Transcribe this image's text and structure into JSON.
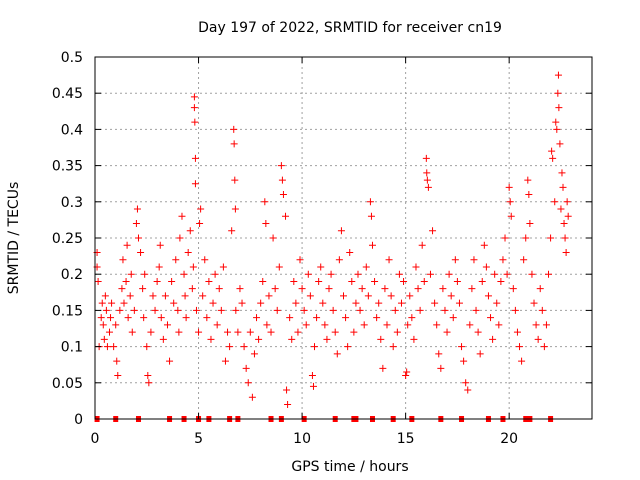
{
  "chart_data": {
    "type": "scatter",
    "title": "Day 197 of 2022, SRMTID for receiver cn19",
    "xlabel": "GPS time / hours",
    "ylabel": "SRMTID / TECUs",
    "xlim": [
      0,
      24
    ],
    "ylim": [
      0,
      0.5
    ],
    "xticks": [
      0,
      5,
      10,
      15,
      20
    ],
    "yticks": [
      0,
      0.05,
      0.1,
      0.15,
      0.2,
      0.25,
      0.3,
      0.35,
      0.4,
      0.45,
      0.5
    ],
    "xtick_labels": [
      "0",
      "5",
      "10",
      "15",
      "20"
    ],
    "ytick_labels": [
      "0",
      "0.05",
      "0.1",
      "0.15",
      "0.2",
      "0.25",
      "0.3",
      "0.35",
      "0.4",
      "0.45",
      "0.5"
    ],
    "grid": true,
    "marker": "plus",
    "color": "#ff0000",
    "series": [
      {
        "name": "SRMTID",
        "points": [
          [
            0.1,
            0.23
          ],
          [
            0.1,
            0.21
          ],
          [
            0.15,
            0.19
          ],
          [
            0.2,
            0.1
          ],
          [
            0.3,
            0.14
          ],
          [
            0.35,
            0.16
          ],
          [
            0.4,
            0.13
          ],
          [
            0.45,
            0.11
          ],
          [
            0.5,
            0.17
          ],
          [
            0.55,
            0.15
          ],
          [
            0.6,
            0.1
          ],
          [
            0.7,
            0.12
          ],
          [
            0.75,
            0.14
          ],
          [
            0.8,
            0.16
          ],
          [
            0.9,
            0.1
          ],
          [
            1.0,
            0.13
          ],
          [
            1.05,
            0.08
          ],
          [
            1.1,
            0.06
          ],
          [
            1.2,
            0.15
          ],
          [
            1.3,
            0.18
          ],
          [
            1.35,
            0.22
          ],
          [
            1.4,
            0.16
          ],
          [
            1.5,
            0.19
          ],
          [
            1.55,
            0.24
          ],
          [
            1.6,
            0.14
          ],
          [
            1.7,
            0.17
          ],
          [
            1.75,
            0.2
          ],
          [
            1.8,
            0.12
          ],
          [
            1.9,
            0.15
          ],
          [
            2.0,
            0.27
          ],
          [
            2.05,
            0.29
          ],
          [
            2.1,
            0.25
          ],
          [
            2.2,
            0.23
          ],
          [
            2.3,
            0.18
          ],
          [
            2.35,
            0.14
          ],
          [
            2.4,
            0.2
          ],
          [
            2.5,
            0.1
          ],
          [
            2.55,
            0.06
          ],
          [
            2.6,
            0.05
          ],
          [
            2.7,
            0.12
          ],
          [
            2.8,
            0.17
          ],
          [
            2.9,
            0.15
          ],
          [
            3.0,
            0.19
          ],
          [
            3.1,
            0.21
          ],
          [
            3.15,
            0.24
          ],
          [
            3.2,
            0.14
          ],
          [
            3.3,
            0.11
          ],
          [
            3.4,
            0.17
          ],
          [
            3.5,
            0.13
          ],
          [
            3.6,
            0.08
          ],
          [
            3.7,
            0.19
          ],
          [
            3.8,
            0.16
          ],
          [
            3.9,
            0.22
          ],
          [
            4.0,
            0.15
          ],
          [
            4.05,
            0.12
          ],
          [
            4.1,
            0.25
          ],
          [
            4.2,
            0.28
          ],
          [
            4.3,
            0.2
          ],
          [
            4.35,
            0.17
          ],
          [
            4.4,
            0.14
          ],
          [
            4.5,
            0.23
          ],
          [
            4.6,
            0.26
          ],
          [
            4.7,
            0.18
          ],
          [
            4.75,
            0.21
          ],
          [
            4.8,
            0.445
          ],
          [
            4.8,
            0.43
          ],
          [
            4.82,
            0.41
          ],
          [
            4.85,
            0.325
          ],
          [
            4.85,
            0.36
          ],
          [
            4.9,
            0.15
          ],
          [
            5.0,
            0.12
          ],
          [
            5.05,
            0.27
          ],
          [
            5.1,
            0.29
          ],
          [
            5.2,
            0.17
          ],
          [
            5.3,
            0.22
          ],
          [
            5.4,
            0.14
          ],
          [
            5.5,
            0.19
          ],
          [
            5.6,
            0.11
          ],
          [
            5.7,
            0.16
          ],
          [
            5.8,
            0.2
          ],
          [
            5.9,
            0.13
          ],
          [
            6.0,
            0.18
          ],
          [
            6.1,
            0.15
          ],
          [
            6.2,
            0.21
          ],
          [
            6.3,
            0.08
          ],
          [
            6.4,
            0.12
          ],
          [
            6.5,
            0.1
          ],
          [
            6.6,
            0.26
          ],
          [
            6.7,
            0.4
          ],
          [
            6.72,
            0.38
          ],
          [
            6.75,
            0.33
          ],
          [
            6.78,
            0.29
          ],
          [
            6.8,
            0.15
          ],
          [
            6.9,
            0.12
          ],
          [
            7.0,
            0.18
          ],
          [
            7.1,
            0.16
          ],
          [
            7.2,
            0.1
          ],
          [
            7.3,
            0.07
          ],
          [
            7.4,
            0.05
          ],
          [
            7.5,
            0.12
          ],
          [
            7.6,
            0.03
          ],
          [
            7.7,
            0.09
          ],
          [
            7.8,
            0.14
          ],
          [
            7.9,
            0.11
          ],
          [
            8.0,
            0.16
          ],
          [
            8.1,
            0.19
          ],
          [
            8.2,
            0.3
          ],
          [
            8.25,
            0.27
          ],
          [
            8.3,
            0.13
          ],
          [
            8.4,
            0.17
          ],
          [
            8.5,
            0.12
          ],
          [
            8.6,
            0.25
          ],
          [
            8.7,
            0.18
          ],
          [
            8.8,
            0.15
          ],
          [
            8.9,
            0.21
          ],
          [
            9.0,
            0.35
          ],
          [
            9.05,
            0.33
          ],
          [
            9.1,
            0.31
          ],
          [
            9.2,
            0.28
          ],
          [
            9.25,
            0.04
          ],
          [
            9.3,
            0.02
          ],
          [
            9.4,
            0.14
          ],
          [
            9.5,
            0.11
          ],
          [
            9.6,
            0.19
          ],
          [
            9.7,
            0.16
          ],
          [
            9.8,
            0.12
          ],
          [
            9.9,
            0.22
          ],
          [
            10.0,
            0.18
          ],
          [
            10.1,
            0.15
          ],
          [
            10.2,
            0.13
          ],
          [
            10.3,
            0.2
          ],
          [
            10.4,
            0.17
          ],
          [
            10.5,
            0.06
          ],
          [
            10.55,
            0.045
          ],
          [
            10.6,
            0.1
          ],
          [
            10.7,
            0.14
          ],
          [
            10.8,
            0.19
          ],
          [
            10.9,
            0.21
          ],
          [
            11.0,
            0.16
          ],
          [
            11.1,
            0.13
          ],
          [
            11.2,
            0.11
          ],
          [
            11.3,
            0.18
          ],
          [
            11.4,
            0.2
          ],
          [
            11.5,
            0.15
          ],
          [
            11.6,
            0.12
          ],
          [
            11.7,
            0.09
          ],
          [
            11.8,
            0.22
          ],
          [
            11.9,
            0.26
          ],
          [
            12.0,
            0.17
          ],
          [
            12.1,
            0.14
          ],
          [
            12.2,
            0.1
          ],
          [
            12.3,
            0.23
          ],
          [
            12.4,
            0.19
          ],
          [
            12.5,
            0.12
          ],
          [
            12.6,
            0.16
          ],
          [
            12.7,
            0.2
          ],
          [
            12.8,
            0.15
          ],
          [
            12.9,
            0.18
          ],
          [
            13.0,
            0.13
          ],
          [
            13.1,
            0.21
          ],
          [
            13.2,
            0.17
          ],
          [
            13.3,
            0.3
          ],
          [
            13.35,
            0.28
          ],
          [
            13.4,
            0.24
          ],
          [
            13.5,
            0.19
          ],
          [
            13.6,
            0.14
          ],
          [
            13.7,
            0.16
          ],
          [
            13.8,
            0.11
          ],
          [
            13.9,
            0.07
          ],
          [
            14.0,
            0.18
          ],
          [
            14.1,
            0.13
          ],
          [
            14.2,
            0.22
          ],
          [
            14.3,
            0.17
          ],
          [
            14.4,
            0.1
          ],
          [
            14.5,
            0.15
          ],
          [
            14.6,
            0.12
          ],
          [
            14.7,
            0.2
          ],
          [
            14.8,
            0.16
          ],
          [
            14.9,
            0.19
          ],
          [
            15.0,
            0.06
          ],
          [
            15.05,
            0.065
          ],
          [
            15.1,
            0.13
          ],
          [
            15.2,
            0.17
          ],
          [
            15.3,
            0.14
          ],
          [
            15.4,
            0.11
          ],
          [
            15.5,
            0.21
          ],
          [
            15.6,
            0.18
          ],
          [
            15.7,
            0.15
          ],
          [
            15.8,
            0.24
          ],
          [
            15.9,
            0.19
          ],
          [
            16.0,
            0.36
          ],
          [
            16.02,
            0.34
          ],
          [
            16.05,
            0.33
          ],
          [
            16.1,
            0.32
          ],
          [
            16.2,
            0.2
          ],
          [
            16.3,
            0.26
          ],
          [
            16.4,
            0.16
          ],
          [
            16.5,
            0.13
          ],
          [
            16.6,
            0.09
          ],
          [
            16.7,
            0.07
          ],
          [
            16.8,
            0.18
          ],
          [
            16.9,
            0.15
          ],
          [
            17.0,
            0.12
          ],
          [
            17.1,
            0.2
          ],
          [
            17.2,
            0.17
          ],
          [
            17.3,
            0.14
          ],
          [
            17.4,
            0.22
          ],
          [
            17.5,
            0.19
          ],
          [
            17.6,
            0.16
          ],
          [
            17.7,
            0.1
          ],
          [
            17.8,
            0.08
          ],
          [
            17.9,
            0.05
          ],
          [
            18.0,
            0.04
          ],
          [
            18.1,
            0.13
          ],
          [
            18.2,
            0.18
          ],
          [
            18.3,
            0.22
          ],
          [
            18.4,
            0.15
          ],
          [
            18.5,
            0.12
          ],
          [
            18.6,
            0.09
          ],
          [
            18.7,
            0.19
          ],
          [
            18.8,
            0.24
          ],
          [
            18.9,
            0.21
          ],
          [
            19.0,
            0.17
          ],
          [
            19.1,
            0.14
          ],
          [
            19.2,
            0.11
          ],
          [
            19.3,
            0.2
          ],
          [
            19.4,
            0.16
          ],
          [
            19.5,
            0.13
          ],
          [
            19.6,
            0.19
          ],
          [
            19.7,
            0.22
          ],
          [
            19.8,
            0.25
          ],
          [
            19.9,
            0.2
          ],
          [
            20.0,
            0.32
          ],
          [
            20.05,
            0.3
          ],
          [
            20.1,
            0.28
          ],
          [
            20.2,
            0.18
          ],
          [
            20.3,
            0.15
          ],
          [
            20.4,
            0.12
          ],
          [
            20.5,
            0.1
          ],
          [
            20.6,
            0.08
          ],
          [
            20.7,
            0.22
          ],
          [
            20.8,
            0.25
          ],
          [
            20.9,
            0.33
          ],
          [
            20.95,
            0.31
          ],
          [
            21.0,
            0.27
          ],
          [
            21.1,
            0.2
          ],
          [
            21.2,
            0.16
          ],
          [
            21.3,
            0.13
          ],
          [
            21.4,
            0.11
          ],
          [
            21.5,
            0.18
          ],
          [
            21.6,
            0.15
          ],
          [
            21.7,
            0.1
          ],
          [
            21.8,
            0.13
          ],
          [
            21.9,
            0.2
          ],
          [
            22.0,
            0.25
          ],
          [
            22.05,
            0.37
          ],
          [
            22.1,
            0.36
          ],
          [
            22.2,
            0.3
          ],
          [
            22.25,
            0.41
          ],
          [
            22.3,
            0.4
          ],
          [
            22.35,
            0.45
          ],
          [
            22.38,
            0.475
          ],
          [
            22.4,
            0.43
          ],
          [
            22.45,
            0.38
          ],
          [
            22.5,
            0.29
          ],
          [
            22.55,
            0.34
          ],
          [
            22.6,
            0.32
          ],
          [
            22.65,
            0.27
          ],
          [
            22.7,
            0.25
          ],
          [
            22.75,
            0.23
          ],
          [
            22.8,
            0.3
          ],
          [
            22.85,
            0.28
          ]
        ]
      }
    ],
    "zero_markers_x": [
      0.1,
      1.0,
      2.1,
      3.6,
      4.3,
      5.0,
      5.5,
      6.5,
      6.9,
      8.5,
      9.0,
      10.1,
      11.6,
      12.5,
      12.6,
      13.4,
      14.4,
      15.3,
      16.7,
      17.7,
      19.0,
      19.7,
      20.8,
      20.9,
      21.0,
      22.0
    ]
  }
}
